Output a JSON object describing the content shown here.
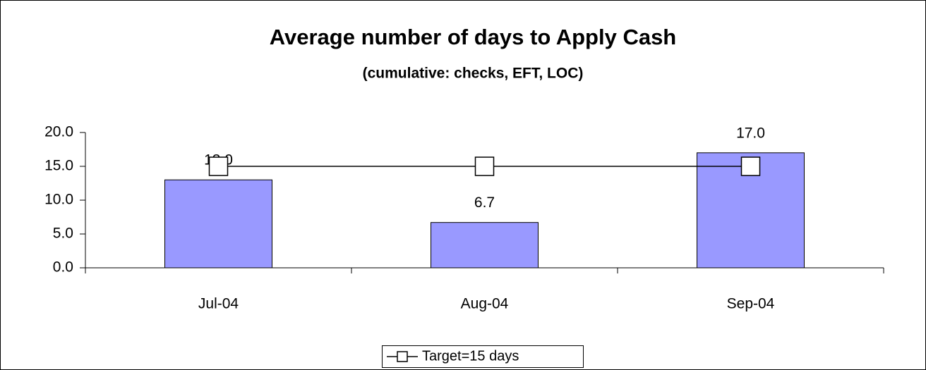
{
  "chart_data": {
    "type": "bar",
    "title": "Average number of days to Apply Cash",
    "subtitle": "(cumulative: checks, EFT, LOC)",
    "categories": [
      "Jul-04",
      "Aug-04",
      "Sep-04"
    ],
    "series": [
      {
        "type": "bar",
        "color": "#9999ff",
        "values": [
          13,
          6.7,
          17
        ],
        "value_labels": [
          "13.0",
          "6.7",
          "17.0"
        ]
      },
      {
        "name": "Target=15 days",
        "type": "line",
        "color": "#000000",
        "values": [
          15,
          15,
          15
        ]
      }
    ],
    "ylim": [
      0,
      20
    ],
    "yticks": [
      {
        "value": 0,
        "label": "0.0"
      },
      {
        "value": 5,
        "label": "5.0"
      },
      {
        "value": 10,
        "label": "10.0"
      },
      {
        "value": 15,
        "label": "15.0"
      },
      {
        "value": 20,
        "label": "20.0"
      }
    ],
    "grid": false,
    "legend": "bottom"
  }
}
